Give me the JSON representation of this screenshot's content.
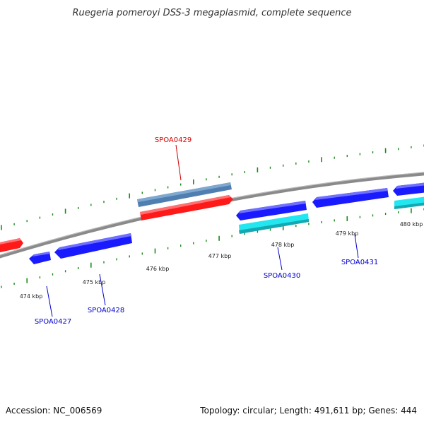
{
  "title": "Ruegeria pomeroyi DSS-3 megaplasmid, complete sequence",
  "accession": "Accession: NC_006569",
  "topology": "Topology: circular; Length: 491,611 bp; Genes: 444",
  "tick_labels": [
    "474 kbp",
    "475 kbp",
    "476 kbp",
    "477 kbp",
    "478 kbp",
    "479 kbp",
    "480 kbp"
  ],
  "genes": [
    {
      "name": "SPOA0427",
      "color": "#0000cc"
    },
    {
      "name": "SPOA0428",
      "color": "#0000cc"
    },
    {
      "name": "SPOA0429",
      "color": "#dd0000"
    },
    {
      "name": "SPOA0430",
      "color": "#0000cc"
    },
    {
      "name": "SPOA0431",
      "color": "#0000cc"
    }
  ],
  "colors": {
    "forward_cds": "#ff1a1a",
    "reverse_cds": "#1a1aff",
    "forward_feature": "#4f7fb0",
    "reverse_feature": "#22e6f0",
    "backbone": "#8a8a8a",
    "ticks": "#1a8a1a"
  }
}
